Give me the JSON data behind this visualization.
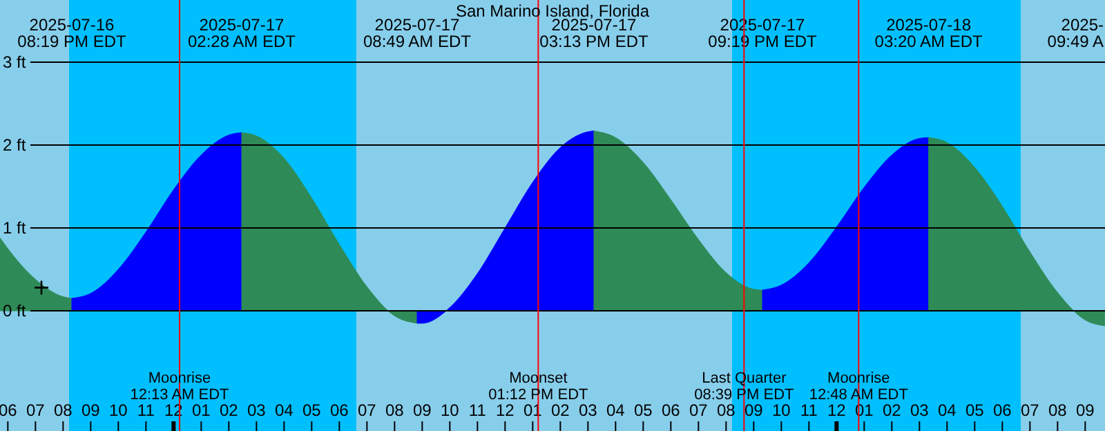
{
  "chart_data": {
    "type": "area",
    "title": "San Marino Island, Florida",
    "series": [
      {
        "color": "#2e8b57",
        "x": [
          "2025-07-16T17:43",
          "2025-07-16T18:00",
          "2025-07-16T19:00",
          "2025-07-16T20:00",
          "2025-07-16T20:19"
        ],
        "values": [
          0.88,
          0.75,
          0.38,
          0.17,
          0.15
        ]
      },
      {
        "color": "#0000ff",
        "x": [
          "2025-07-16T20:19",
          "2025-07-16T21:00",
          "2025-07-16T22:00",
          "2025-07-16T23:00",
          "2025-07-17T00:00",
          "2025-07-17T01:00",
          "2025-07-17T02:00",
          "2025-07-17T02:28"
        ],
        "values": [
          0.15,
          0.21,
          0.5,
          0.95,
          1.46,
          1.88,
          2.12,
          2.15
        ]
      },
      {
        "color": "#2e8b57",
        "x": [
          "2025-07-17T02:28",
          "2025-07-17T03:00",
          "2025-07-17T04:00",
          "2025-07-17T05:00",
          "2025-07-17T06:00",
          "2025-07-17T07:00",
          "2025-07-17T08:00",
          "2025-07-17T08:49"
        ],
        "values": [
          2.15,
          2.11,
          1.84,
          1.36,
          0.8,
          0.29,
          -0.06,
          -0.15
        ]
      },
      {
        "color": "#0000ff",
        "x": [
          "2025-07-17T08:49",
          "2025-07-17T09:00",
          "2025-07-17T10:00",
          "2025-07-17T11:00",
          "2025-07-17T12:00",
          "2025-07-17T13:00",
          "2025-07-17T14:00",
          "2025-07-17T15:00",
          "2025-07-17T15:13"
        ],
        "values": [
          -0.15,
          -0.15,
          0.04,
          0.45,
          1.0,
          1.55,
          1.97,
          2.16,
          2.17
        ]
      },
      {
        "color": "#2e8b57",
        "x": [
          "2025-07-17T15:13",
          "2025-07-17T16:00",
          "2025-07-17T17:00",
          "2025-07-17T18:00",
          "2025-07-17T19:00",
          "2025-07-17T20:00",
          "2025-07-17T21:00",
          "2025-07-17T21:19"
        ],
        "values": [
          2.17,
          2.09,
          1.79,
          1.34,
          0.86,
          0.46,
          0.26,
          0.25
        ]
      },
      {
        "color": "#0000ff",
        "x": [
          "2025-07-17T21:19",
          "2025-07-17T22:00",
          "2025-07-17T23:00",
          "2025-07-18T00:00",
          "2025-07-18T01:00",
          "2025-07-18T02:00",
          "2025-07-18T03:00",
          "2025-07-18T03:20"
        ],
        "values": [
          0.25,
          0.31,
          0.58,
          1.01,
          1.49,
          1.88,
          2.08,
          2.09
        ]
      },
      {
        "color": "#2e8b57",
        "x": [
          "2025-07-18T03:20",
          "2025-07-18T04:00",
          "2025-07-18T05:00",
          "2025-07-18T06:00",
          "2025-07-18T07:00",
          "2025-07-18T08:00",
          "2025-07-18T09:00",
          "2025-07-18T09:42"
        ],
        "values": [
          2.09,
          2.03,
          1.73,
          1.26,
          0.71,
          0.22,
          -0.11,
          -0.18
        ]
      },
      {
        "type": "scatter",
        "marker": "cross",
        "color": "#000000",
        "x": [
          "2025-07-16T19:13"
        ],
        "values": [
          0.28
        ]
      }
    ],
    "xlim": [
      "2025-07-16T17:43",
      "2025-07-18T09:43"
    ],
    "xticks": [
      {
        "value": "2025-07-16T18:00",
        "label": "06"
      },
      {
        "value": "2025-07-16T19:00",
        "label": "07"
      },
      {
        "value": "2025-07-16T20:00",
        "label": "08"
      },
      {
        "value": "2025-07-16T21:00",
        "label": "09"
      },
      {
        "value": "2025-07-16T22:00",
        "label": "10"
      },
      {
        "value": "2025-07-16T23:00",
        "label": "11"
      },
      {
        "value": "2025-07-17T00:00",
        "label": "12"
      },
      {
        "value": "2025-07-17T01:00",
        "label": "01"
      },
      {
        "value": "2025-07-17T02:00",
        "label": "02"
      },
      {
        "value": "2025-07-17T03:00",
        "label": "03"
      },
      {
        "value": "2025-07-17T04:00",
        "label": "04"
      },
      {
        "value": "2025-07-17T05:00",
        "label": "05"
      },
      {
        "value": "2025-07-17T06:00",
        "label": "06"
      },
      {
        "value": "2025-07-17T07:00",
        "label": "07"
      },
      {
        "value": "2025-07-17T08:00",
        "label": "08"
      },
      {
        "value": "2025-07-17T09:00",
        "label": "09"
      },
      {
        "value": "2025-07-17T10:00",
        "label": "10"
      },
      {
        "value": "2025-07-17T11:00",
        "label": "11"
      },
      {
        "value": "2025-07-17T12:00",
        "label": "12"
      },
      {
        "value": "2025-07-17T13:00",
        "label": "01"
      },
      {
        "value": "2025-07-17T14:00",
        "label": "02"
      },
      {
        "value": "2025-07-17T15:00",
        "label": "03"
      },
      {
        "value": "2025-07-17T16:00",
        "label": "04"
      },
      {
        "value": "2025-07-17T17:00",
        "label": "05"
      },
      {
        "value": "2025-07-17T18:00",
        "label": "06"
      },
      {
        "value": "2025-07-17T19:00",
        "label": "07"
      },
      {
        "value": "2025-07-17T20:00",
        "label": "08"
      },
      {
        "value": "2025-07-17T21:00",
        "label": "09"
      },
      {
        "value": "2025-07-17T22:00",
        "label": "10"
      },
      {
        "value": "2025-07-17T23:00",
        "label": "11"
      },
      {
        "value": "2025-07-18T00:00",
        "label": "12"
      },
      {
        "value": "2025-07-18T01:00",
        "label": "01"
      },
      {
        "value": "2025-07-18T02:00",
        "label": "02"
      },
      {
        "value": "2025-07-18T03:00",
        "label": "03"
      },
      {
        "value": "2025-07-18T04:00",
        "label": "04"
      },
      {
        "value": "2025-07-18T05:00",
        "label": "05"
      },
      {
        "value": "2025-07-18T06:00",
        "label": "06"
      },
      {
        "value": "2025-07-18T07:00",
        "label": "07"
      },
      {
        "value": "2025-07-18T08:00",
        "label": "08"
      },
      {
        "value": "2025-07-18T09:00",
        "label": "09"
      }
    ],
    "x2lim": [
      "2025-07-16T17:43",
      "2025-07-18T09:43"
    ],
    "x2ticks": [
      {
        "value": "2025-07-16T20:19",
        "label": "2025-07-16\n08:19 PM EDT"
      },
      {
        "value": "2025-07-17T02:28",
        "label": "2025-07-17\n02:28 AM EDT"
      },
      {
        "value": "2025-07-17T08:49",
        "label": "2025-07-17\n08:49 AM EDT"
      },
      {
        "value": "2025-07-17T15:13",
        "label": "2025-07-17\n03:13 PM EDT"
      },
      {
        "value": "2025-07-17T21:19",
        "label": "2025-07-17\n09:19 PM EDT"
      },
      {
        "value": "2025-07-18T03:20",
        "label": "2025-07-18\n03:20 AM EDT"
      }
    ],
    "ylim": [
      -1.45,
      3.75
    ],
    "yticks": [
      {
        "value": 0,
        "label": "0 ft"
      },
      {
        "value": 1,
        "label": "1 ft"
      },
      {
        "value": 2,
        "label": "2 ft"
      },
      {
        "value": 3,
        "label": "3 ft"
      }
    ],
    "grid": "y",
    "bands": [
      {
        "axis": "x",
        "from": "2025-07-16T20:13",
        "to": "2025-07-17T06:37",
        "color": "#00bfff"
      },
      {
        "axis": "x",
        "from": "2025-07-17T20:13",
        "to": "2025-07-18T06:40",
        "color": "#00bfff"
      }
    ],
    "ref_lines": [
      {
        "axis": "x",
        "value": "2025-07-17T00:13",
        "label": "Moonrise\n12:13 AM EDT",
        "color": "#ff0000"
      },
      {
        "axis": "x",
        "value": "2025-07-17T13:12",
        "label": "Moonset\n01:12 PM EDT",
        "color": "#ff0000"
      },
      {
        "axis": "x",
        "value": "2025-07-17T20:39",
        "label": "Last Quarter\n08:39 PM EDT",
        "color": "#ff0000"
      },
      {
        "axis": "x",
        "value": "2025-07-18T00:48",
        "label": "Moonrise\n12:48 AM EDT",
        "color": "#ff0000"
      }
    ],
    "annotations": [
      "2025-\n09:49 A"
    ]
  }
}
